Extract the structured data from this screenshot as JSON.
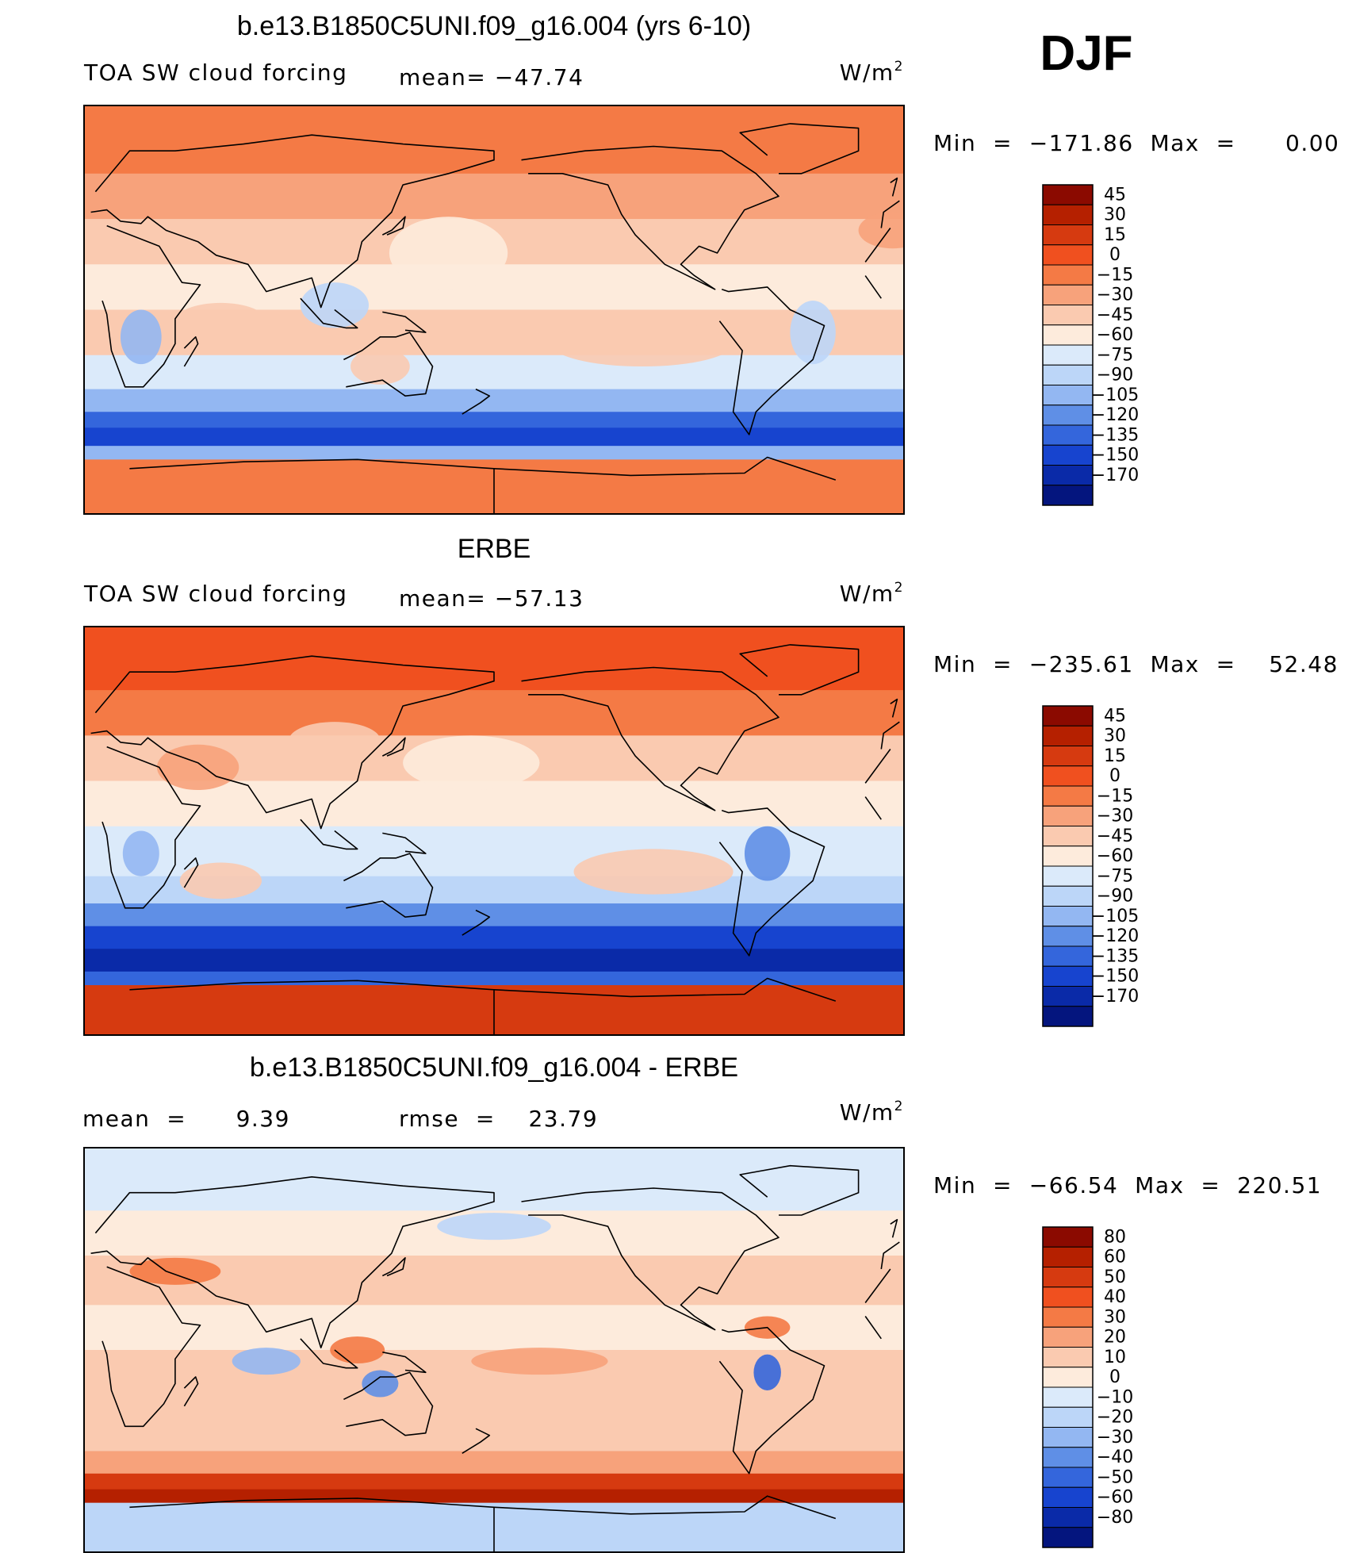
{
  "season_label": "DJF",
  "icons": [
    "coastline-icon"
  ],
  "panels": [
    {
      "title": "b.e13.B1850C5UNI.f09_g16.004 (yrs 6-10)",
      "left_label": "TOA SW cloud forcing",
      "center_label": "mean=  −47.74",
      "units": "W/m",
      "units_exp": "2",
      "minmax": "Min  =  −171.86  Max  =      0.00",
      "colorbar": {
        "labels": [
          "45",
          "30",
          "15",
          "0",
          "−15",
          "−30",
          "−45",
          "−60",
          "−75",
          "−90",
          "−105",
          "−120",
          "−135",
          "−150",
          "−170"
        ],
        "colors": [
          "#8b0a00",
          "#b52000",
          "#d63a10",
          "#f0501f",
          "#f47a45",
          "#f7a27b",
          "#facab0",
          "#fdebdc",
          "#dbeafa",
          "#bcd6f8",
          "#93b7f2",
          "#5f8fe6",
          "#3466dc",
          "#1744cf",
          "#0a2aa8",
          "#04157e"
        ]
      },
      "fields": {
        "mode": "model"
      }
    },
    {
      "title": "ERBE",
      "left_label": "TOA SW cloud forcing",
      "center_label": "mean=  −57.13",
      "units": "W/m",
      "units_exp": "2",
      "minmax": "Min  =  −235.61  Max  =    52.48",
      "colorbar": {
        "labels": [
          "45",
          "30",
          "15",
          "0",
          "−15",
          "−30",
          "−45",
          "−60",
          "−75",
          "−90",
          "−105",
          "−120",
          "−135",
          "−150",
          "−170"
        ],
        "colors": [
          "#8b0a00",
          "#b52000",
          "#d63a10",
          "#f0501f",
          "#f47a45",
          "#f7a27b",
          "#facab0",
          "#fdebdc",
          "#dbeafa",
          "#bcd6f8",
          "#93b7f2",
          "#5f8fe6",
          "#3466dc",
          "#1744cf",
          "#0a2aa8",
          "#04157e"
        ]
      },
      "fields": {
        "mode": "obs"
      }
    },
    {
      "title": "b.e13.B1850C5UNI.f09_g16.004 - ERBE",
      "left_label": "mean  =      9.39",
      "center_label": "rmse  =    23.79",
      "units": "W/m",
      "units_exp": "2",
      "minmax": "Min  =  −66.54  Max  =  220.51",
      "colorbar": {
        "labels": [
          "80",
          "60",
          "50",
          "40",
          "30",
          "20",
          "10",
          "0",
          "−10",
          "−20",
          "−30",
          "−40",
          "−50",
          "−60",
          "−80"
        ],
        "colors": [
          "#8b0a00",
          "#b52000",
          "#d63a10",
          "#f0501f",
          "#f47a45",
          "#f7a27b",
          "#facab0",
          "#fdebdc",
          "#dbeafa",
          "#bcd6f8",
          "#93b7f2",
          "#5f8fe6",
          "#3466dc",
          "#1744cf",
          "#0a2aa8",
          "#04157e"
        ]
      },
      "fields": {
        "mode": "diff"
      }
    }
  ]
}
